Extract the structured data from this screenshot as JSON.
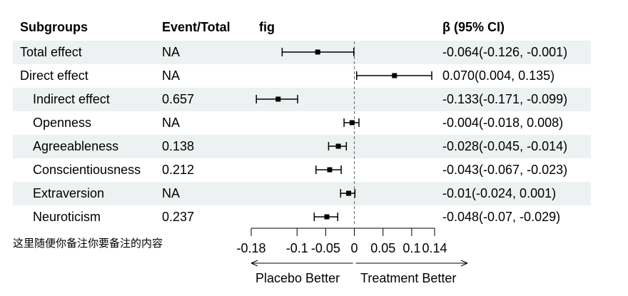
{
  "headers": {
    "subgroups": "Subgroups",
    "event_total": "Event/Total",
    "fig": "fig",
    "beta_ci": "β (95% CI)"
  },
  "rows": [
    {
      "subgroup": "Total effect",
      "event_total": "NA",
      "ci_text": "-0.064(-0.126, -0.001)"
    },
    {
      "subgroup": "Direct effect",
      "event_total": "NA",
      "ci_text": "0.070(0.004, 0.135)"
    },
    {
      "subgroup": "Indirect effect",
      "event_total": "0.657",
      "ci_text": "-0.133(-0.171, -0.099)"
    },
    {
      "subgroup": "Openness",
      "event_total": "NA",
      "ci_text": "-0.004(-0.018, 0.008)"
    },
    {
      "subgroup": "Agreeableness",
      "event_total": "0.138",
      "ci_text": "-0.028(-0.045, -0.014)"
    },
    {
      "subgroup": "Conscientiousness",
      "event_total": "0.212",
      "ci_text": "-0.043(-0.067, -0.023)"
    },
    {
      "subgroup": "Extraversion",
      "event_total": "NA",
      "ci_text": "-0.01(-0.024, 0.001)"
    },
    {
      "subgroup": "Neuroticism",
      "event_total": "0.237",
      "ci_text": "-0.048(-0.07, -0.029)"
    }
  ],
  "note": "这里随便你备注你要备注的内容",
  "chart_data": {
    "type": "forest",
    "reference_line": 0,
    "xlim": [
      -0.18,
      0.14
    ],
    "ticks": [
      -0.18,
      -0.1,
      -0.05,
      0,
      0.05,
      0.1,
      0.14
    ],
    "tick_labels": [
      "-0.18",
      "-0.1",
      "-0.05",
      "0",
      "0.05",
      "0.1",
      "0.14"
    ],
    "arrow_left_label": "Placebo Better",
    "arrow_right_label": "Treatment Better",
    "estimates": [
      {
        "label": "Total effect",
        "est": -0.064,
        "lo": -0.126,
        "hi": -0.001
      },
      {
        "label": "Direct effect",
        "est": 0.07,
        "lo": 0.004,
        "hi": 0.135
      },
      {
        "label": "Indirect effect",
        "est": -0.133,
        "lo": -0.171,
        "hi": -0.099
      },
      {
        "label": "Openness",
        "est": -0.004,
        "lo": -0.018,
        "hi": 0.008
      },
      {
        "label": "Agreeableness",
        "est": -0.028,
        "lo": -0.045,
        "hi": -0.014
      },
      {
        "label": "Conscientiousness",
        "est": -0.043,
        "lo": -0.067,
        "hi": -0.023
      },
      {
        "label": "Extraversion",
        "est": -0.01,
        "lo": -0.024,
        "hi": 0.001
      },
      {
        "label": "Neuroticism",
        "est": -0.048,
        "lo": -0.07,
        "hi": -0.029
      }
    ]
  }
}
